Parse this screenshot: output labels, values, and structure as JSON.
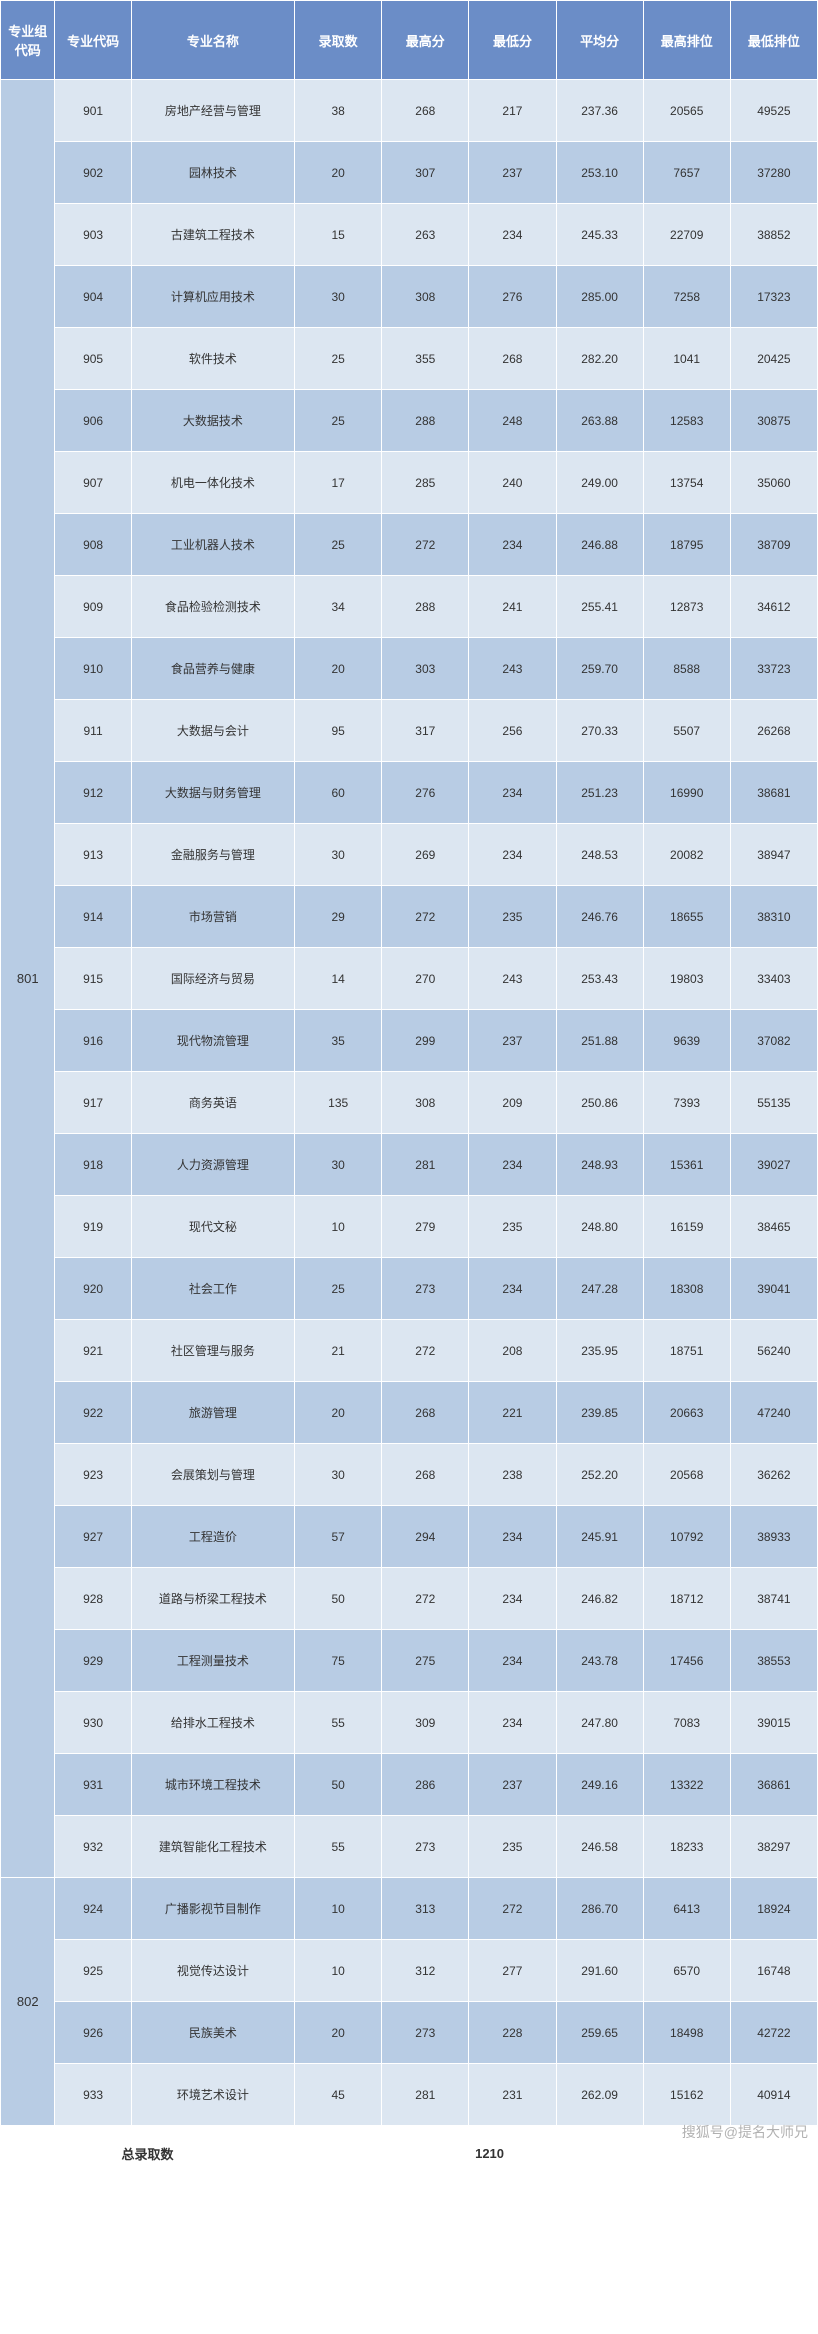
{
  "table": {
    "header": {
      "group_code": "专业组代码",
      "major_code": "专业代码",
      "major_name": "专业名称",
      "admit_count": "录取数",
      "max_score": "最高分",
      "min_score": "最低分",
      "avg_score": "平均分",
      "max_rank": "最高排位",
      "min_rank": "最低排位"
    },
    "groups": [
      {
        "group_code": "801",
        "rows": [
          {
            "code": "901",
            "name": "房地产经营与管理",
            "admit": "38",
            "max": "268",
            "min": "217",
            "avg": "237.36",
            "maxrank": "20565",
            "minrank": "49525"
          },
          {
            "code": "902",
            "name": "园林技术",
            "admit": "20",
            "max": "307",
            "min": "237",
            "avg": "253.10",
            "maxrank": "7657",
            "minrank": "37280"
          },
          {
            "code": "903",
            "name": "古建筑工程技术",
            "admit": "15",
            "max": "263",
            "min": "234",
            "avg": "245.33",
            "maxrank": "22709",
            "minrank": "38852"
          },
          {
            "code": "904",
            "name": "计算机应用技术",
            "admit": "30",
            "max": "308",
            "min": "276",
            "avg": "285.00",
            "maxrank": "7258",
            "minrank": "17323"
          },
          {
            "code": "905",
            "name": "软件技术",
            "admit": "25",
            "max": "355",
            "min": "268",
            "avg": "282.20",
            "maxrank": "1041",
            "minrank": "20425"
          },
          {
            "code": "906",
            "name": "大数据技术",
            "admit": "25",
            "max": "288",
            "min": "248",
            "avg": "263.88",
            "maxrank": "12583",
            "minrank": "30875"
          },
          {
            "code": "907",
            "name": "机电一体化技术",
            "admit": "17",
            "max": "285",
            "min": "240",
            "avg": "249.00",
            "maxrank": "13754",
            "minrank": "35060"
          },
          {
            "code": "908",
            "name": "工业机器人技术",
            "admit": "25",
            "max": "272",
            "min": "234",
            "avg": "246.88",
            "maxrank": "18795",
            "minrank": "38709"
          },
          {
            "code": "909",
            "name": "食品检验检测技术",
            "admit": "34",
            "max": "288",
            "min": "241",
            "avg": "255.41",
            "maxrank": "12873",
            "minrank": "34612"
          },
          {
            "code": "910",
            "name": "食品营养与健康",
            "admit": "20",
            "max": "303",
            "min": "243",
            "avg": "259.70",
            "maxrank": "8588",
            "minrank": "33723"
          },
          {
            "code": "911",
            "name": "大数据与会计",
            "admit": "95",
            "max": "317",
            "min": "256",
            "avg": "270.33",
            "maxrank": "5507",
            "minrank": "26268"
          },
          {
            "code": "912",
            "name": "大数据与财务管理",
            "admit": "60",
            "max": "276",
            "min": "234",
            "avg": "251.23",
            "maxrank": "16990",
            "minrank": "38681"
          },
          {
            "code": "913",
            "name": "金融服务与管理",
            "admit": "30",
            "max": "269",
            "min": "234",
            "avg": "248.53",
            "maxrank": "20082",
            "minrank": "38947"
          },
          {
            "code": "914",
            "name": "市场营销",
            "admit": "29",
            "max": "272",
            "min": "235",
            "avg": "246.76",
            "maxrank": "18655",
            "minrank": "38310"
          },
          {
            "code": "915",
            "name": "国际经济与贸易",
            "admit": "14",
            "max": "270",
            "min": "243",
            "avg": "253.43",
            "maxrank": "19803",
            "minrank": "33403"
          },
          {
            "code": "916",
            "name": "现代物流管理",
            "admit": "35",
            "max": "299",
            "min": "237",
            "avg": "251.88",
            "maxrank": "9639",
            "minrank": "37082"
          },
          {
            "code": "917",
            "name": "商务英语",
            "admit": "135",
            "max": "308",
            "min": "209",
            "avg": "250.86",
            "maxrank": "7393",
            "minrank": "55135"
          },
          {
            "code": "918",
            "name": "人力资源管理",
            "admit": "30",
            "max": "281",
            "min": "234",
            "avg": "248.93",
            "maxrank": "15361",
            "minrank": "39027"
          },
          {
            "code": "919",
            "name": "现代文秘",
            "admit": "10",
            "max": "279",
            "min": "235",
            "avg": "248.80",
            "maxrank": "16159",
            "minrank": "38465"
          },
          {
            "code": "920",
            "name": "社会工作",
            "admit": "25",
            "max": "273",
            "min": "234",
            "avg": "247.28",
            "maxrank": "18308",
            "minrank": "39041"
          },
          {
            "code": "921",
            "name": "社区管理与服务",
            "admit": "21",
            "max": "272",
            "min": "208",
            "avg": "235.95",
            "maxrank": "18751",
            "minrank": "56240"
          },
          {
            "code": "922",
            "name": "旅游管理",
            "admit": "20",
            "max": "268",
            "min": "221",
            "avg": "239.85",
            "maxrank": "20663",
            "minrank": "47240"
          },
          {
            "code": "923",
            "name": "会展策划与管理",
            "admit": "30",
            "max": "268",
            "min": "238",
            "avg": "252.20",
            "maxrank": "20568",
            "minrank": "36262"
          },
          {
            "code": "927",
            "name": "工程造价",
            "admit": "57",
            "max": "294",
            "min": "234",
            "avg": "245.91",
            "maxrank": "10792",
            "minrank": "38933"
          },
          {
            "code": "928",
            "name": "道路与桥梁工程技术",
            "admit": "50",
            "max": "272",
            "min": "234",
            "avg": "246.82",
            "maxrank": "18712",
            "minrank": "38741"
          },
          {
            "code": "929",
            "name": "工程测量技术",
            "admit": "75",
            "max": "275",
            "min": "234",
            "avg": "243.78",
            "maxrank": "17456",
            "minrank": "38553"
          },
          {
            "code": "930",
            "name": "给排水工程技术",
            "admit": "55",
            "max": "309",
            "min": "234",
            "avg": "247.80",
            "maxrank": "7083",
            "minrank": "39015"
          },
          {
            "code": "931",
            "name": "城市环境工程技术",
            "admit": "50",
            "max": "286",
            "min": "237",
            "avg": "249.16",
            "maxrank": "13322",
            "minrank": "36861"
          },
          {
            "code": "932",
            "name": "建筑智能化工程技术",
            "admit": "55",
            "max": "273",
            "min": "235",
            "avg": "246.58",
            "maxrank": "18233",
            "minrank": "38297"
          }
        ]
      },
      {
        "group_code": "802",
        "rows": [
          {
            "code": "924",
            "name": "广播影视节目制作",
            "admit": "10",
            "max": "313",
            "min": "272",
            "avg": "286.70",
            "maxrank": "6413",
            "minrank": "18924"
          },
          {
            "code": "925",
            "name": "视觉传达设计",
            "admit": "10",
            "max": "312",
            "min": "277",
            "avg": "291.60",
            "maxrank": "6570",
            "minrank": "16748"
          },
          {
            "code": "926",
            "name": "民族美术",
            "admit": "20",
            "max": "273",
            "min": "228",
            "avg": "259.65",
            "maxrank": "18498",
            "minrank": "42722"
          },
          {
            "code": "933",
            "name": "环境艺术设计",
            "admit": "45",
            "max": "281",
            "min": "231",
            "avg": "262.09",
            "maxrank": "15162",
            "minrank": "40914"
          }
        ]
      }
    ],
    "footer": {
      "total_label": "总录取数",
      "total_value": "1210"
    }
  },
  "watermark": "搜狐号@提名大师兄",
  "style": {
    "header_bg": "#6b8dc7",
    "light_bg": "#dce6f1",
    "dark_bg": "#b8cce4",
    "border": "#ffffff"
  }
}
